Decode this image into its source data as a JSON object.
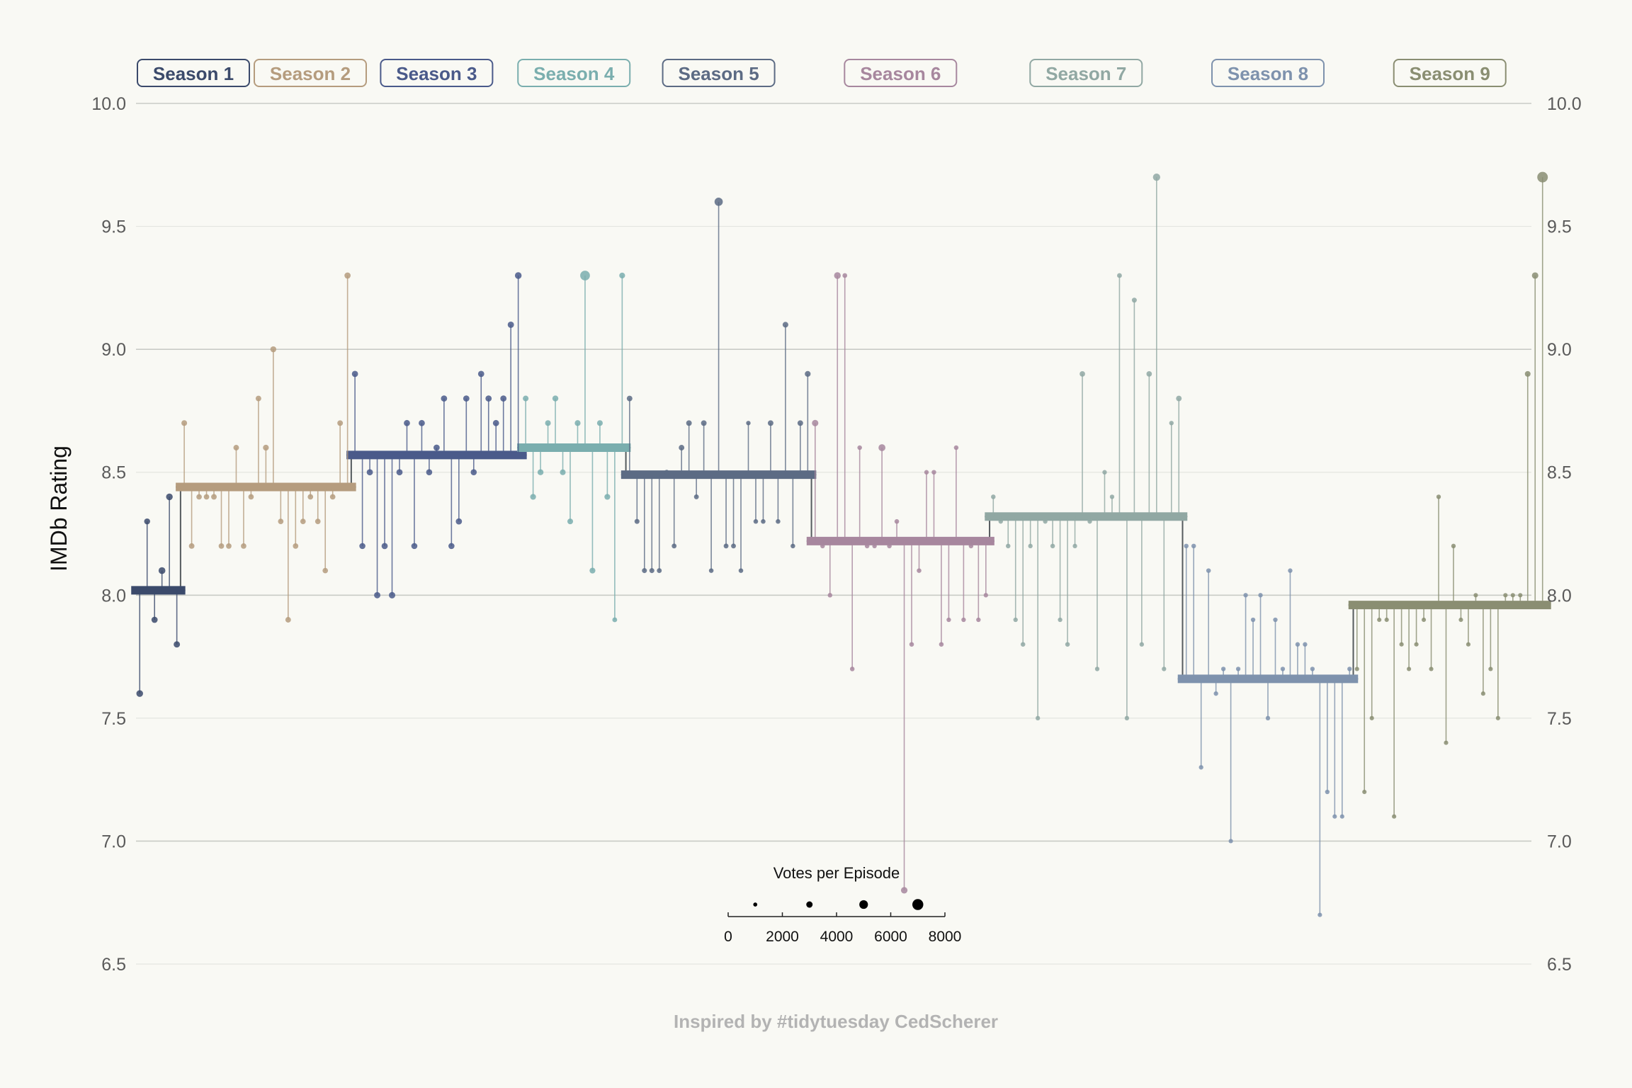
{
  "chart_data": {
    "type": "scatter",
    "ylabel": "IMDb Rating",
    "ylim": [
      6.5,
      10.0
    ],
    "yticks": [
      6.5,
      7.0,
      7.5,
      8.0,
      8.5,
      9.0,
      9.5,
      10.0
    ],
    "ytick_labels": [
      "6.5",
      "7.0",
      "7.5",
      "8.0",
      "8.5",
      "9.0",
      "9.5",
      "10.0"
    ],
    "xlim": [
      0.5,
      188.5
    ],
    "caption": "Inspired by #tidytuesday CedScherer",
    "legend": {
      "title": "Votes per Episode",
      "breaks": [
        0,
        2000,
        4000,
        6000,
        8000
      ],
      "break_labels": [
        "0",
        "2000",
        "4000",
        "6000",
        "8000"
      ],
      "examples": [
        1000,
        3000,
        5000,
        7000
      ],
      "vote_range": [
        1000,
        8000
      ]
    },
    "seasons": [
      {
        "name": "Season 1",
        "color": "#3b4a6b",
        "avg": 8.02,
        "start": 1,
        "ratings": [
          7.6,
          8.3,
          7.9,
          8.1,
          8.4,
          7.8
        ],
        "votes": [
          3000,
          2400,
          2600,
          3100,
          3000,
          2700
        ]
      },
      {
        "name": "Season 2",
        "color": "#b59c7e",
        "avg": 8.44,
        "start": 7,
        "ratings": [
          8.7,
          8.2,
          8.4,
          8.4,
          8.4,
          8.2,
          8.2,
          8.6,
          8.2,
          8.4,
          8.8,
          8.6,
          9.0,
          8.3,
          7.9,
          8.2,
          8.3,
          8.4,
          8.3,
          8.1,
          8.4,
          8.7,
          9.3
        ],
        "votes": [
          2200,
          2100,
          2000,
          2000,
          2100,
          2000,
          2000,
          2100,
          2000,
          2000,
          2100,
          2300,
          2400,
          2000,
          2100,
          2000,
          2000,
          2000,
          2000,
          2000,
          2000,
          2100,
          2600
        ]
      },
      {
        "name": "Season 3",
        "color": "#4a5a8a",
        "avg": 8.57,
        "start": 30,
        "ratings": [
          8.9,
          8.2,
          8.5,
          8.0,
          8.2,
          8.0,
          8.5,
          8.7,
          8.2,
          8.7,
          8.5,
          8.6,
          8.8,
          8.2,
          8.3,
          8.8,
          8.5,
          8.9,
          8.8,
          8.7,
          8.8,
          9.1,
          9.3
        ],
        "votes": [
          2600,
          2500,
          2600,
          2700,
          2600,
          2800,
          2600,
          2600,
          2500,
          2600,
          2500,
          2600,
          2600,
          2500,
          2600,
          2600,
          2500,
          2600,
          2600,
          2600,
          2600,
          2700,
          3000
        ]
      },
      {
        "name": "Season 4",
        "color": "#7aaeae",
        "avg": 8.6,
        "start": 53,
        "ratings": [
          8.8,
          8.4,
          8.5,
          8.7,
          8.8,
          8.5,
          8.3,
          8.7,
          9.3,
          8.1,
          8.7,
          8.4,
          7.9,
          9.3
        ],
        "votes": [
          2200,
          2300,
          2400,
          2200,
          2400,
          2200,
          2200,
          2300,
          5500,
          2300,
          2200,
          2300,
          1500,
          2300
        ]
      },
      {
        "name": "Season 5",
        "color": "#5c6b84",
        "avg": 8.49,
        "start": 67,
        "ratings": [
          8.8,
          8.3,
          8.1,
          8.1,
          8.1,
          8.5,
          8.2,
          8.6,
          8.7,
          8.4,
          8.7,
          8.1,
          9.6,
          8.2,
          8.2,
          8.1,
          8.7,
          8.3,
          8.3,
          8.7,
          8.3,
          9.1,
          8.2,
          8.7,
          8.9
        ],
        "votes": [
          2100,
          1600,
          1600,
          1600,
          1500,
          1500,
          1500,
          2100,
          2100,
          1500,
          2100,
          1300,
          4300,
          1500,
          1500,
          1300,
          1200,
          1300,
          1300,
          2100,
          1300,
          2200,
          1300,
          2100,
          2300
        ]
      },
      {
        "name": "Season 6",
        "color": "#a7879e",
        "avg": 8.22,
        "start": 92,
        "ratings": [
          8.7,
          8.2,
          8.0,
          9.3,
          9.3,
          7.7,
          8.6,
          8.2,
          8.2,
          8.6,
          8.2,
          8.3,
          6.8,
          7.8,
          8.1,
          8.5,
          8.5,
          7.8,
          7.9,
          8.6,
          7.9,
          8.2,
          7.9,
          8.0
        ],
        "votes": [
          2800,
          1300,
          1300,
          3000,
          1400,
          1300,
          1300,
          1300,
          1200,
          3200,
          1300,
          1300,
          2900,
          1300,
          1300,
          1200,
          1300,
          1300,
          1200,
          1300,
          1200,
          1300,
          1200,
          1200
        ]
      },
      {
        "name": "Season 7",
        "color": "#91a8a3",
        "avg": 8.32,
        "start": 116,
        "ratings": [
          8.4,
          8.3,
          8.2,
          7.9,
          7.8,
          8.2,
          7.5,
          8.3,
          8.2,
          7.9,
          7.8,
          8.2,
          8.9,
          8.3,
          7.7,
          8.5,
          8.4,
          9.3,
          7.5,
          9.2,
          7.8,
          8.9,
          9.7,
          7.7,
          8.7,
          8.8
        ],
        "votes": [
          1300,
          1200,
          1300,
          1200,
          1300,
          1200,
          1200,
          1200,
          1300,
          1200,
          1300,
          1200,
          2000,
          1200,
          1200,
          1200,
          1200,
          1500,
          1200,
          1600,
          1200,
          2000,
          3500,
          1200,
          1200,
          2100
        ]
      },
      {
        "name": "Season 8",
        "color": "#7e92ad",
        "avg": 7.66,
        "start": 142,
        "ratings": [
          8.2,
          8.2,
          7.3,
          8.1,
          7.6,
          7.7,
          7.0,
          7.7,
          8.0,
          7.9,
          8.0,
          7.5,
          7.9,
          7.7,
          8.1,
          7.8,
          7.8,
          7.7,
          6.7,
          7.2,
          7.1,
          7.1,
          7.7
        ],
        "votes": [
          1300,
          1300,
          1200,
          1300,
          1200,
          1200,
          1100,
          1200,
          1200,
          1200,
          1200,
          1200,
          1200,
          1200,
          1200,
          1200,
          1200,
          1200,
          1100,
          1200,
          1100,
          1100,
          1200
        ]
      },
      {
        "name": "Season 9",
        "color": "#8a8e72",
        "avg": 7.96,
        "start": 165,
        "ratings": [
          7.7,
          7.2,
          7.5,
          7.9,
          7.9,
          7.1,
          7.8,
          7.7,
          7.8,
          7.9,
          7.7,
          8.4,
          7.4,
          8.2,
          7.9,
          7.8,
          8.0,
          7.6,
          7.7,
          7.5,
          8.0,
          8.0,
          8.0,
          8.9,
          9.3,
          9.7
        ],
        "votes": [
          1100,
          1100,
          1100,
          1100,
          1100,
          1100,
          1100,
          1100,
          1100,
          1100,
          1100,
          1200,
          1100,
          1200,
          1100,
          1100,
          1100,
          1100,
          1100,
          1100,
          1100,
          1100,
          1100,
          2200,
          2800,
          6200
        ]
      }
    ]
  }
}
